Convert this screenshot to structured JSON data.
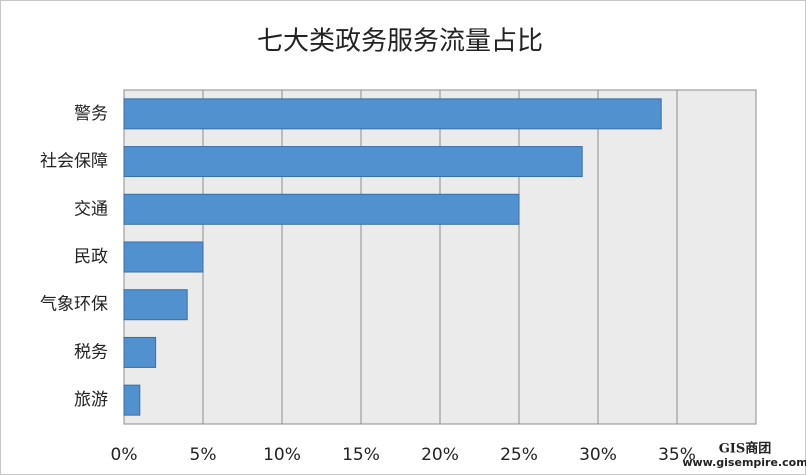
{
  "chart_data": {
    "type": "bar",
    "orientation": "horizontal",
    "title": "七大类政务服务流量占比",
    "categories": [
      "警务",
      "社会保障",
      "交通",
      "民政",
      "气象环保",
      "税务",
      "旅游"
    ],
    "values": [
      34,
      29,
      25,
      5,
      4,
      2,
      1
    ],
    "color": "#5291d0",
    "xlim": [
      0,
      40
    ],
    "xticks": [
      {
        "value": 0,
        "label": "0%"
      },
      {
        "value": 5,
        "label": "5%"
      },
      {
        "value": 10,
        "label": "10%"
      },
      {
        "value": 15,
        "label": "15%"
      },
      {
        "value": 20,
        "label": "20%"
      },
      {
        "value": 25,
        "label": "25%"
      },
      {
        "value": 30,
        "label": "30%"
      },
      {
        "value": 35,
        "label": "35%"
      }
    ],
    "grid": true,
    "watermark": [
      "GIS商团",
      "www.gisempire.com"
    ]
  }
}
